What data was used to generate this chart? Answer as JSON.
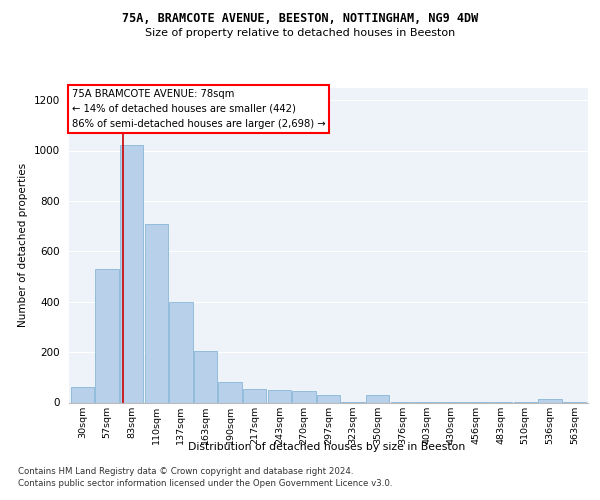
{
  "title1": "75A, BRAMCOTE AVENUE, BEESTON, NOTTINGHAM, NG9 4DW",
  "title2": "Size of property relative to detached houses in Beeston",
  "xlabel": "Distribution of detached houses by size in Beeston",
  "ylabel": "Number of detached properties",
  "footer1": "Contains HM Land Registry data © Crown copyright and database right 2024.",
  "footer2": "Contains public sector information licensed under the Open Government Licence v3.0.",
  "annotation_line1": "75A BRAMCOTE AVENUE: 78sqm",
  "annotation_line2": "← 14% of detached houses are smaller (442)",
  "annotation_line3": "86% of semi-detached houses are larger (2,698) →",
  "bar_color": "#b8d0ea",
  "bar_edge_color": "#7aafd4",
  "vline_color": "#cc0000",
  "background_color": "#eef2f9",
  "categories": [
    "30sqm",
    "57sqm",
    "83sqm",
    "110sqm",
    "137sqm",
    "163sqm",
    "190sqm",
    "217sqm",
    "243sqm",
    "270sqm",
    "297sqm",
    "323sqm",
    "350sqm",
    "376sqm",
    "403sqm",
    "430sqm",
    "456sqm",
    "483sqm",
    "510sqm",
    "536sqm",
    "563sqm"
  ],
  "values": [
    60,
    530,
    1020,
    710,
    400,
    205,
    80,
    55,
    50,
    45,
    28,
    2,
    30,
    2,
    2,
    2,
    2,
    2,
    2,
    12,
    2
  ],
  "ylim": [
    0,
    1250
  ],
  "yticks": [
    0,
    200,
    400,
    600,
    800,
    1000,
    1200
  ],
  "vline_x": 1.65
}
